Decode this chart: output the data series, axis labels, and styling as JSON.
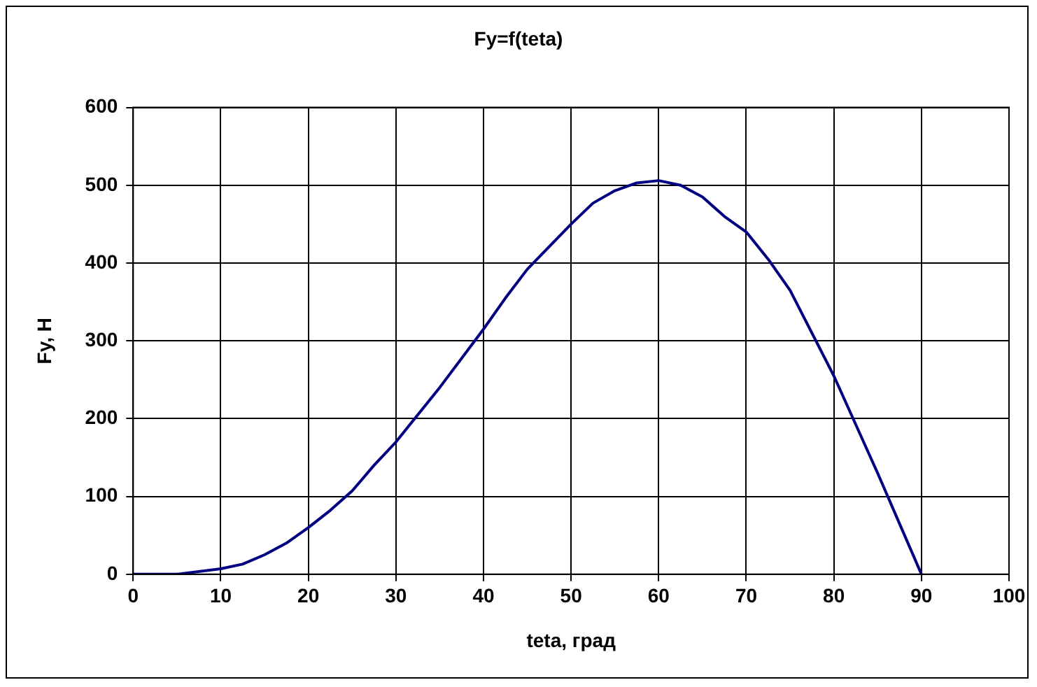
{
  "chart_data": {
    "type": "line",
    "title": "Fy=f(teta)",
    "xlabel": "teta, град",
    "ylabel": "Fy, H",
    "x": [
      0,
      5,
      10,
      12.5,
      15,
      17.5,
      20,
      22.5,
      25,
      27.5,
      30,
      35,
      40,
      42.5,
      45,
      50,
      52.5,
      55,
      57.5,
      60,
      62.5,
      65,
      67.5,
      70,
      72.5,
      75,
      80,
      85,
      90
    ],
    "series": [
      {
        "color": "#000080",
        "values": [
          0,
          0,
          7,
          13,
          25,
          40,
          60,
          82,
          107,
          140,
          170,
          240,
          315,
          355,
          392,
          450,
          477,
          493,
          503,
          506,
          500,
          485,
          460,
          440,
          405,
          365,
          255,
          130,
          0
        ]
      }
    ],
    "xlim": [
      0,
      100
    ],
    "xticks": [
      0,
      10,
      20,
      30,
      40,
      50,
      60,
      70,
      80,
      90,
      100
    ],
    "ylim": [
      0,
      600
    ],
    "yticks": [
      0,
      100,
      200,
      300,
      400,
      500,
      600
    ],
    "grid": true,
    "legend": false,
    "marker": "none",
    "line_style": "solid"
  }
}
